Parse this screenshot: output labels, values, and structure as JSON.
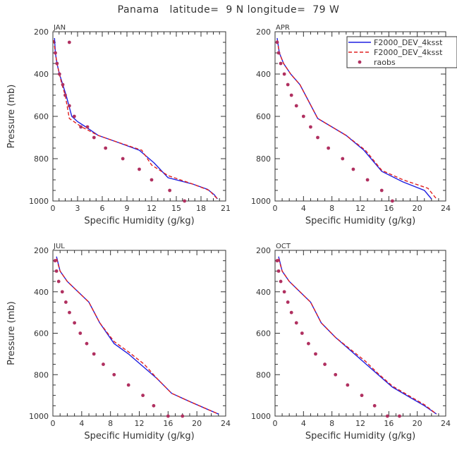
{
  "title": "Panama   latitude=  9 N longitude=  79 W",
  "legend": {
    "placement": "top-right",
    "entries": [
      {
        "label": "F2000_DEV_4ksst",
        "style": "solid",
        "color": "#1f1fe0"
      },
      {
        "label": "F2000_DEV_4ksst",
        "style": "dashed",
        "color": "#e02020"
      },
      {
        "label": "raobs",
        "style": "marker",
        "color": "#b03060"
      }
    ]
  },
  "colors": {
    "solid": "#1f1fe0",
    "dashed": "#e02020",
    "marker": "#b03060",
    "axis": "#333333"
  },
  "chart_data": [
    {
      "type": "line",
      "panel": "JAN",
      "xlabel": "Specific Humidity (g/kg)",
      "ylabel": "Pressure (mb)",
      "xlim": [
        0,
        21
      ],
      "ylim": [
        1000,
        200
      ],
      "y_inverted": true,
      "xticks": [
        0,
        3,
        6,
        9,
        12,
        15,
        18,
        21
      ],
      "yticks": [
        200,
        400,
        600,
        800,
        1000
      ],
      "series": [
        {
          "name": "F2000_DEV_4ksst",
          "style": "solid",
          "x": [
            0.2,
            0.3,
            0.5,
            0.8,
            1.2,
            1.6,
            2.3,
            3.0,
            4.0,
            5.5,
            7.7,
            10.5,
            12.3,
            14.0,
            17.0,
            18.8,
            19.6,
            20.0
          ],
          "y": [
            230,
            300,
            350,
            400,
            450,
            500,
            600,
            625,
            650,
            690,
            720,
            760,
            820,
            890,
            920,
            945,
            970,
            990
          ]
        },
        {
          "name": "F2000_DEV_4ksst",
          "style": "dashed",
          "x": [
            0.1,
            0.3,
            0.5,
            0.8,
            1.1,
            1.5,
            2.0,
            3.5,
            5.5,
            7.7,
            10.8,
            12.0,
            14.0,
            17.0,
            19.0,
            20.0
          ],
          "y": [
            240,
            300,
            350,
            400,
            450,
            500,
            610,
            650,
            690,
            720,
            760,
            830,
            880,
            920,
            950,
            990
          ]
        },
        {
          "name": "raobs",
          "style": "marker",
          "x": [
            2.0,
            0.3,
            0.5,
            0.8,
            1.2,
            1.5,
            2.0,
            2.6,
            3.4,
            4.2,
            5.0,
            6.4,
            8.5,
            10.5,
            12.0,
            14.2,
            16.0
          ],
          "y": [
            250,
            300,
            350,
            400,
            450,
            500,
            550,
            600,
            650,
            650,
            700,
            750,
            800,
            850,
            900,
            950,
            1000
          ]
        }
      ]
    },
    {
      "type": "line",
      "panel": "APR",
      "xlabel": "Specific Humidity (g/kg)",
      "ylabel": "",
      "xlim": [
        0,
        24
      ],
      "ylim": [
        1000,
        200
      ],
      "y_inverted": true,
      "xticks": [
        0,
        4,
        8,
        12,
        16,
        20,
        24
      ],
      "yticks": [
        200,
        400,
        600,
        800,
        1000
      ],
      "series": [
        {
          "name": "F2000_DEV_4ksst",
          "style": "solid",
          "x": [
            0.3,
            0.6,
            1.2,
            2.2,
            3.5,
            6.0,
            8.0,
            10.0,
            12.5,
            15.0,
            18.0,
            21.0,
            22.0
          ],
          "y": [
            230,
            300,
            350,
            400,
            450,
            610,
            650,
            690,
            760,
            860,
            910,
            950,
            990
          ]
        },
        {
          "name": "F2000_DEV_4ksst",
          "style": "dashed",
          "x": [
            0.3,
            0.6,
            1.2,
            2.2,
            3.5,
            6.0,
            8.0,
            10.0,
            12.7,
            15.0,
            18.0,
            21.5,
            22.7
          ],
          "y": [
            240,
            300,
            350,
            400,
            450,
            610,
            650,
            690,
            760,
            855,
            900,
            940,
            990
          ]
        },
        {
          "name": "raobs",
          "style": "marker",
          "x": [
            0.3,
            0.5,
            0.8,
            1.3,
            1.8,
            2.3,
            3.0,
            4.0,
            5.0,
            6.0,
            7.5,
            9.5,
            11.0,
            13.0,
            15.0,
            16.5
          ],
          "y": [
            250,
            300,
            350,
            400,
            450,
            500,
            550,
            600,
            650,
            700,
            750,
            800,
            850,
            900,
            950,
            1000
          ]
        }
      ]
    },
    {
      "type": "line",
      "panel": "JUL",
      "xlabel": "Specific Humidity (g/kg)",
      "ylabel": "Pressure (mb)",
      "xlim": [
        0,
        24
      ],
      "ylim": [
        1000,
        200
      ],
      "y_inverted": true,
      "xticks": [
        0,
        4,
        8,
        12,
        16,
        20,
        24
      ],
      "yticks": [
        200,
        400,
        600,
        800,
        1000
      ],
      "series": [
        {
          "name": "F2000_DEV_4ksst",
          "style": "solid",
          "x": [
            0.5,
            1.0,
            2.0,
            3.5,
            5.0,
            6.5,
            8.5,
            10.5,
            12.5,
            14.5,
            16.5,
            19.0,
            21.0,
            23.0
          ],
          "y": [
            230,
            300,
            350,
            400,
            450,
            550,
            650,
            700,
            760,
            820,
            890,
            930,
            960,
            990
          ]
        },
        {
          "name": "F2000_DEV_4ksst",
          "style": "dashed",
          "x": [
            0.5,
            1.0,
            2.0,
            3.5,
            5.0,
            6.5,
            8.5,
            10.5,
            12.7,
            14.5,
            16.5,
            19.0,
            21.0,
            23.0
          ],
          "y": [
            240,
            300,
            350,
            400,
            450,
            550,
            640,
            690,
            750,
            820,
            890,
            930,
            960,
            990
          ]
        },
        {
          "name": "raobs",
          "style": "marker",
          "x": [
            0.3,
            0.5,
            0.8,
            1.3,
            1.8,
            2.3,
            3.0,
            3.8,
            4.7,
            5.7,
            7.0,
            8.5,
            10.5,
            12.5,
            14.0,
            16.0,
            18.0
          ],
          "y": [
            250,
            300,
            350,
            400,
            450,
            500,
            550,
            600,
            650,
            700,
            750,
            800,
            850,
            900,
            950,
            1000,
            1000
          ]
        }
      ]
    },
    {
      "type": "line",
      "panel": "OCT",
      "xlabel": "Specific Humidity (g/kg)",
      "ylabel": "",
      "xlim": [
        0,
        24
      ],
      "ylim": [
        1000,
        200
      ],
      "y_inverted": true,
      "xticks": [
        0,
        4,
        8,
        12,
        16,
        20,
        24
      ],
      "yticks": [
        200,
        400,
        600,
        800,
        1000
      ],
      "series": [
        {
          "name": "F2000_DEV_4ksst",
          "style": "solid",
          "x": [
            0.5,
            1.0,
            2.0,
            3.5,
            5.0,
            6.5,
            8.5,
            10.5,
            12.5,
            14.5,
            16.5,
            19.0,
            21.0,
            22.7
          ],
          "y": [
            230,
            300,
            350,
            400,
            450,
            550,
            620,
            680,
            740,
            800,
            860,
            910,
            950,
            990
          ]
        },
        {
          "name": "F2000_DEV_4ksst",
          "style": "dashed",
          "x": [
            0.5,
            1.0,
            2.0,
            3.5,
            5.0,
            6.5,
            8.5,
            10.5,
            12.7,
            14.5,
            16.5,
            19.0,
            21.0,
            22.7
          ],
          "y": [
            240,
            300,
            350,
            400,
            450,
            550,
            620,
            675,
            735,
            795,
            855,
            905,
            945,
            990
          ]
        },
        {
          "name": "raobs",
          "style": "marker",
          "x": [
            0.3,
            0.5,
            0.8,
            1.3,
            1.8,
            2.3,
            3.0,
            3.8,
            4.7,
            5.7,
            7.0,
            8.5,
            10.2,
            12.2,
            14.0,
            15.8,
            17.5
          ],
          "y": [
            250,
            300,
            350,
            400,
            450,
            500,
            550,
            600,
            650,
            700,
            750,
            800,
            850,
            900,
            950,
            1000,
            1000
          ]
        }
      ]
    }
  ]
}
